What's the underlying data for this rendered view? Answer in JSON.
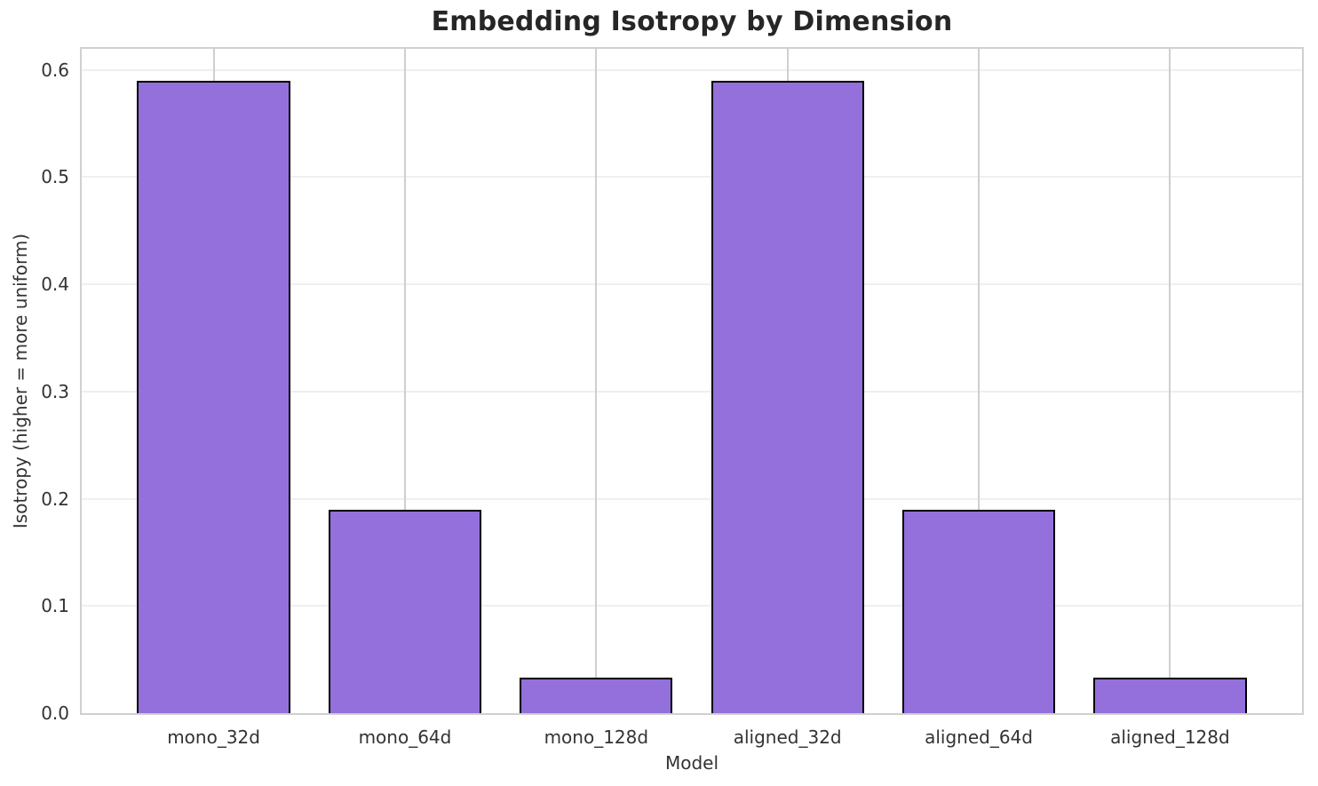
{
  "chart_data": {
    "type": "bar",
    "title": "Embedding Isotropy by Dimension",
    "xlabel": "Model",
    "ylabel": "Isotropy (higher = more uniform)",
    "categories": [
      "mono_32d",
      "mono_64d",
      "mono_128d",
      "aligned_32d",
      "aligned_64d",
      "aligned_128d"
    ],
    "values": [
      0.59,
      0.19,
      0.033,
      0.59,
      0.19,
      0.033
    ],
    "ylim": [
      0,
      0.6195
    ],
    "ytick_labels": [
      "0.0",
      "0.1",
      "0.2",
      "0.3",
      "0.4",
      "0.5",
      "0.6"
    ],
    "grid": true,
    "legend_position": "none",
    "bar_width_fraction": 0.8,
    "colors": {
      "bar_fill": "#9370DB",
      "bar_edge": "#000000",
      "grid_horizontal": "#efefef",
      "grid_vertical": "#cfcfcf",
      "spine": "#d0d0d0",
      "title_text": "#262626",
      "tick_text": "#333333",
      "background": "#ffffff"
    }
  }
}
